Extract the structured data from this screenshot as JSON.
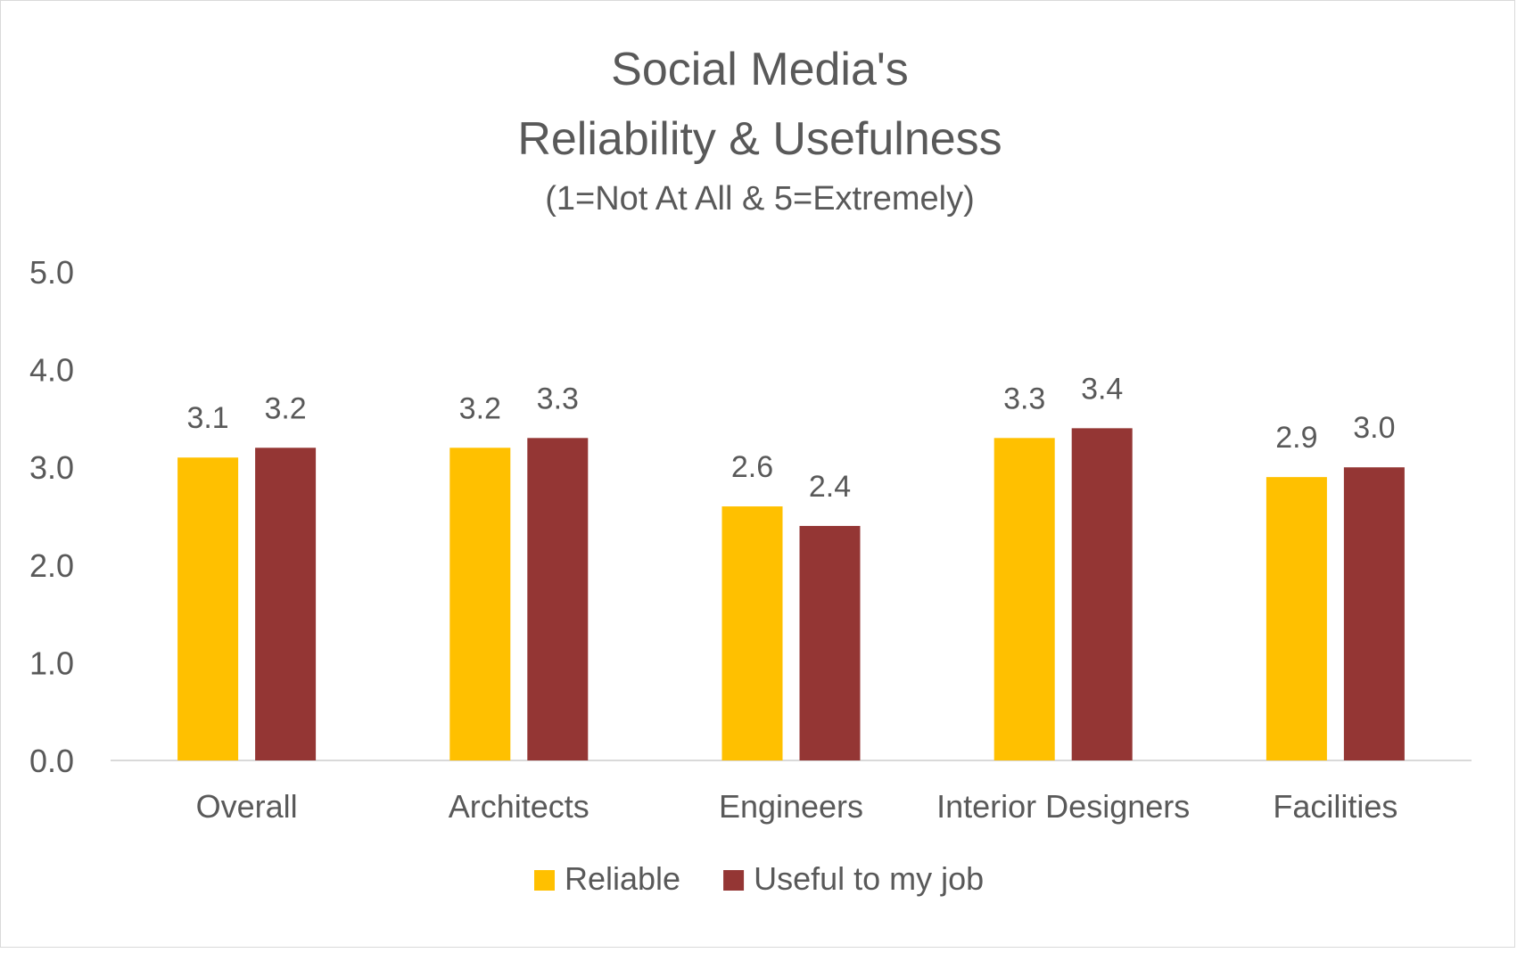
{
  "chart_data": {
    "type": "bar",
    "title_line1": "Social Media's",
    "title_line2": "Reliability & Usefulness",
    "subtitle": "(1=Not At All & 5=Extremely)",
    "xlabel": "",
    "ylabel": "",
    "categories": [
      "Overall",
      "Architects",
      "Engineers",
      "Interior Designers",
      "Facilities"
    ],
    "series": [
      {
        "name": "Reliable",
        "color": "#FFC000",
        "values": [
          3.1,
          3.2,
          2.6,
          3.3,
          2.9
        ],
        "labels": [
          "3.1",
          "3.2",
          "2.6",
          "3.3",
          "2.9"
        ]
      },
      {
        "name": "Useful to my job",
        "color": "#943634",
        "values": [
          3.2,
          3.3,
          2.4,
          3.4,
          3.0
        ],
        "labels": [
          "3.2",
          "3.3",
          "2.4",
          "3.4",
          "3.0"
        ]
      }
    ],
    "ylim": [
      0,
      5
    ],
    "yticks": [
      "0.0",
      "1.0",
      "2.0",
      "3.0",
      "4.0",
      "5.0"
    ],
    "grid": false,
    "legend": "bottom"
  }
}
